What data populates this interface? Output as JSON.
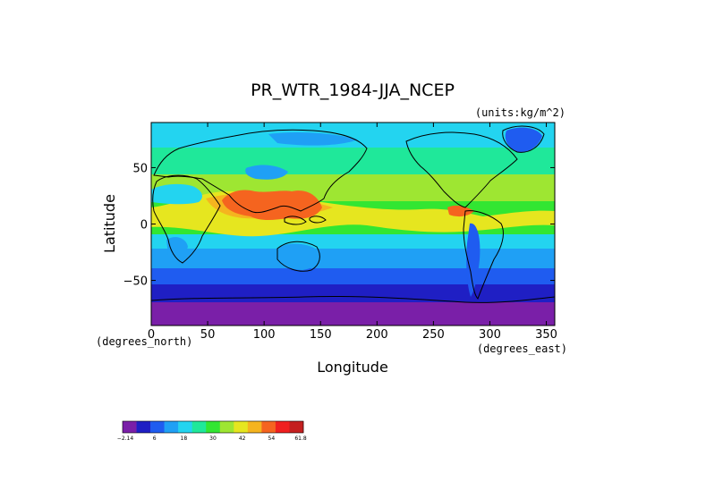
{
  "chart_data": {
    "type": "heatmap",
    "title": "PR_WTR_1984-JJA_NCEP",
    "units_label": "(units:kg/m^2)",
    "xlabel": "Longitude",
    "ylabel": "Latitude",
    "x_units_label": "(degrees_east)",
    "y_units_label": "(degrees_north)",
    "xlim": [
      0,
      357.5
    ],
    "ylim": [
      -90,
      90
    ],
    "x_ticks": [
      "0",
      "50",
      "100",
      "150",
      "200",
      "250",
      "300",
      "350"
    ],
    "x_tick_values": [
      0,
      50,
      100,
      150,
      200,
      250,
      300,
      350
    ],
    "y_ticks": [
      "50",
      "0",
      "−50"
    ],
    "y_tick_values": [
      50,
      0,
      -50
    ],
    "colorbar": {
      "labels": [
        "−2.14",
        "6",
        "18",
        "30",
        "42",
        "54",
        "61.8"
      ],
      "colors": [
        "#7a1fa8",
        "#1f1fc4",
        "#1f5cf0",
        "#1fa0f5",
        "#23d4f0",
        "#1fe89a",
        "#32e632",
        "#9ee632",
        "#e6e61f",
        "#f5b41f",
        "#f5641f",
        "#f01f1f",
        "#c41f1f"
      ]
    },
    "grid": false,
    "legend": "bottom-left colorbar"
  }
}
